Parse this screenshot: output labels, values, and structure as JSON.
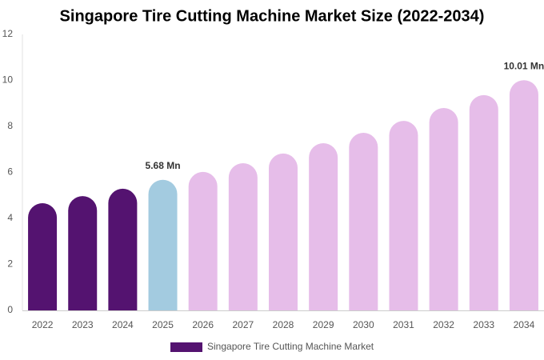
{
  "chart_data": {
    "type": "bar",
    "title": "Singapore Tire Cutting Machine Market Size (2022-2034)",
    "categories": [
      "2022",
      "2023",
      "2024",
      "2025",
      "2026",
      "2027",
      "2028",
      "2029",
      "2030",
      "2031",
      "2032",
      "2033",
      "2034"
    ],
    "series": [
      {
        "name": "Singapore Tire Cutting Machine Market",
        "color": "#541370",
        "colors": [
          "#541370",
          "#541370",
          "#541370",
          "#a3cbe0",
          "#e6bde9",
          "#e6bde9",
          "#e6bde9",
          "#e6bde9",
          "#e6bde9",
          "#e6bde9",
          "#e6bde9",
          "#e6bde9",
          "#e6bde9"
        ],
        "values": [
          4.66,
          4.97,
          5.29,
          5.68,
          6.02,
          6.4,
          6.82,
          7.27,
          7.72,
          8.24,
          8.8,
          9.36,
          10.01
        ],
        "value_labels": [
          null,
          null,
          null,
          "5.68 Mn",
          null,
          null,
          null,
          null,
          null,
          null,
          null,
          null,
          "10.01 Mn"
        ]
      }
    ],
    "ylim": [
      0,
      12
    ],
    "yticks": [
      0,
      2,
      4,
      6,
      8,
      10,
      12
    ],
    "grid": false
  }
}
